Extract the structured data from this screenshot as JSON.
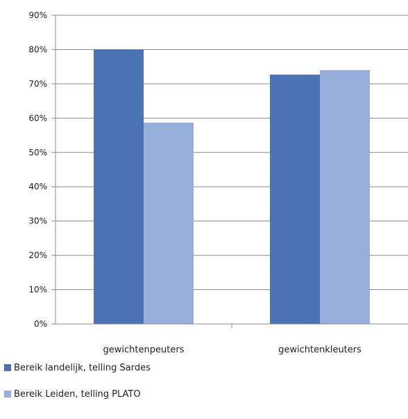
{
  "chart_data": {
    "type": "bar",
    "categories": [
      "gewichtenpeuters",
      "gewichtenkleuters"
    ],
    "series": [
      {
        "name": "Bereik landelijk, telling Sardes",
        "values": [
          80,
          72.7
        ],
        "color": "#4a72b5"
      },
      {
        "name": "Bereik Leiden, telling PLATO",
        "values": [
          58.7,
          74
        ],
        "color": "#98aedb"
      }
    ],
    "ylim": [
      0,
      90
    ],
    "yticks": [
      0,
      10,
      20,
      30,
      40,
      50,
      60,
      70,
      80,
      90
    ],
    "ytick_labels": [
      "0%",
      "10%",
      "20%",
      "30%",
      "40%",
      "50%",
      "60%",
      "70%",
      "80%",
      "90%"
    ],
    "grid": true,
    "legend": "bottom-left"
  }
}
